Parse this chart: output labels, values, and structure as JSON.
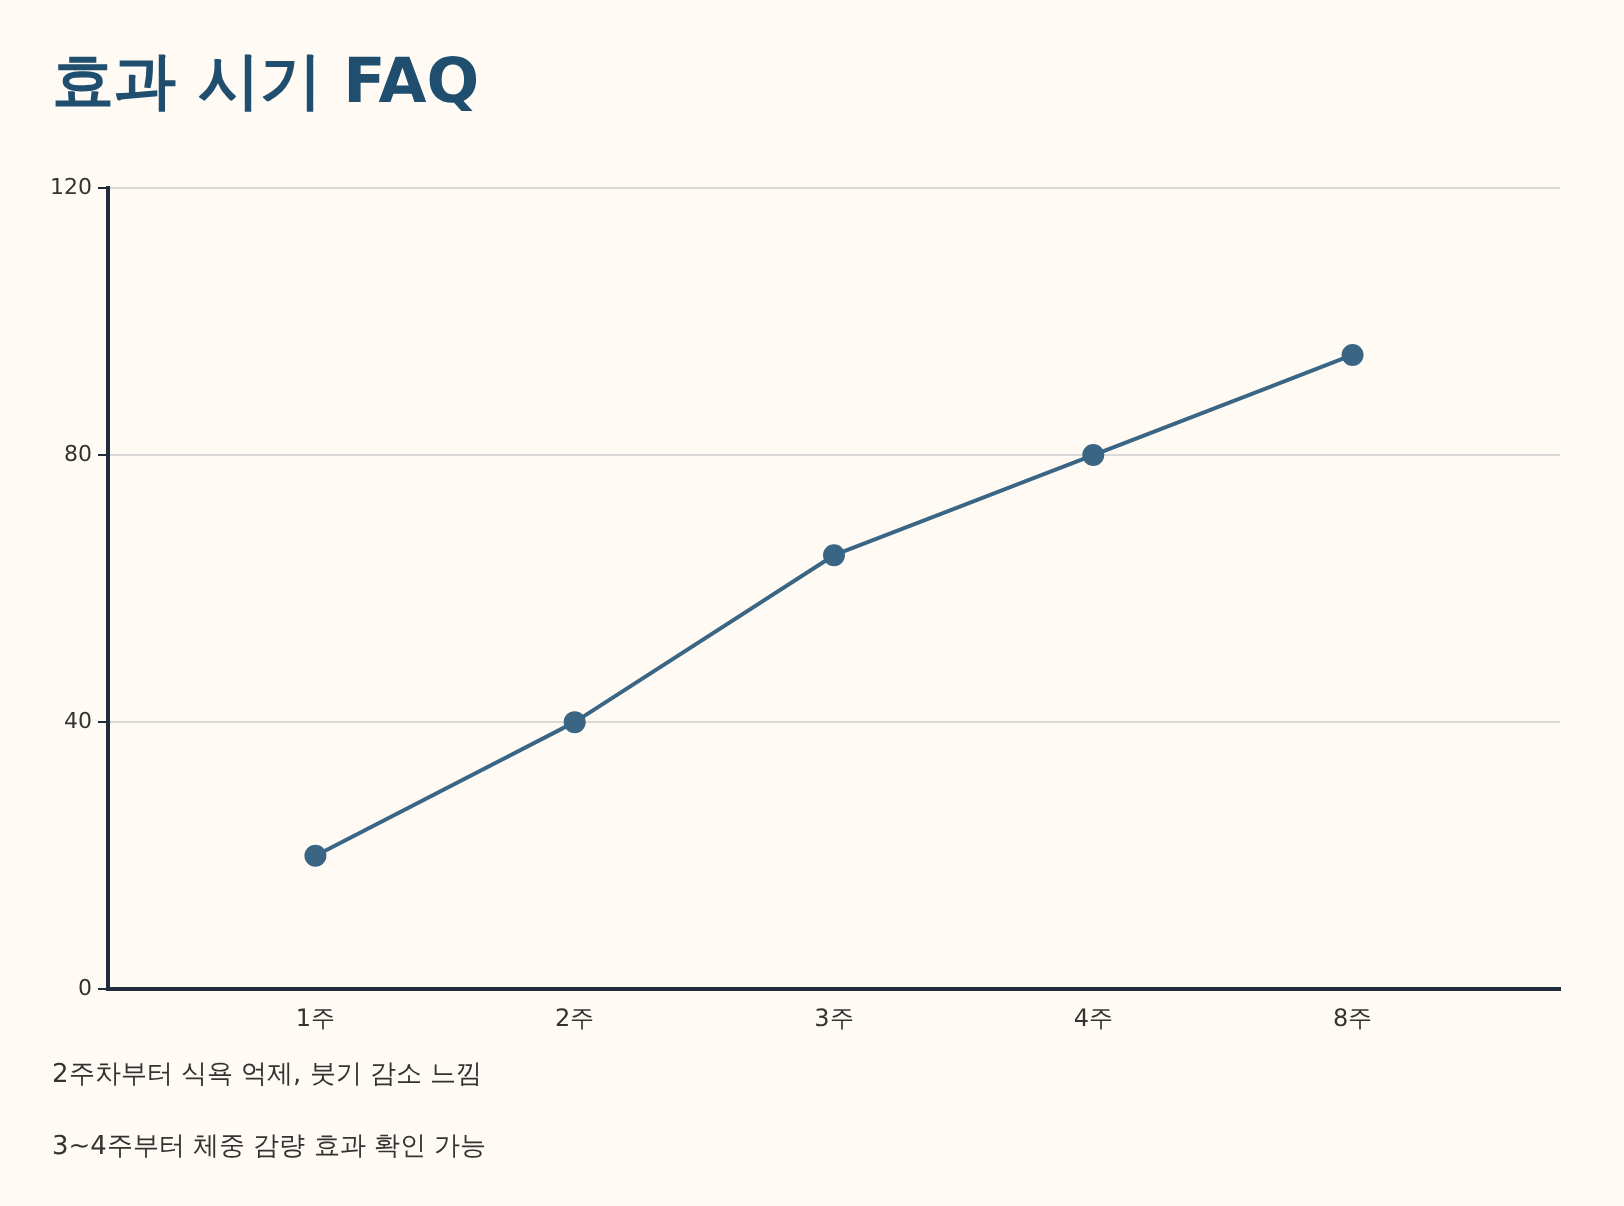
{
  "chart_data": {
    "type": "line",
    "title": "효과 시기 FAQ",
    "categories": [
      "1주",
      "2주",
      "3주",
      "4주",
      "8주"
    ],
    "series": [
      {
        "color": "#3a6584",
        "values": [
          20,
          40,
          65,
          80,
          95
        ]
      }
    ],
    "ylim": [
      0,
      120
    ],
    "yticks": [
      0,
      40,
      80,
      120
    ],
    "grid": "y",
    "marker": "circle",
    "line_style": "solid",
    "legend": false,
    "annotations": [
      "2주차부터 식욕 억제, 붓기 감소 느낌",
      "3~4주부터 체중 감량 효과 확인 가능"
    ]
  }
}
